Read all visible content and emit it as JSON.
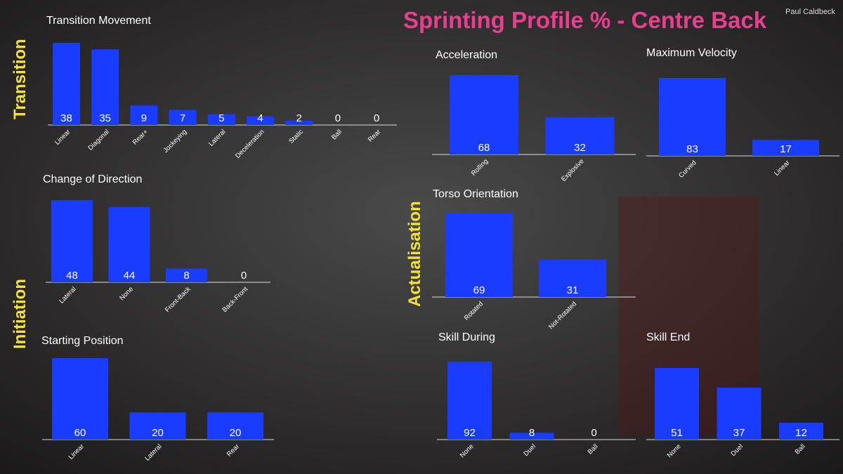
{
  "header": {
    "title": "Sprinting Profile % - Centre Back",
    "author": "Paul Caldbeck"
  },
  "sections": [
    "Transition",
    "Initiation",
    "Actualisation"
  ],
  "chart_data": [
    {
      "type": "bar",
      "title": "Transition Movement",
      "color": "#1a3cff",
      "categories": [
        "Linear",
        "Diagonal",
        "Rear+",
        "Jockeying",
        "Lateral",
        "Deceleration",
        "Static",
        "Ball",
        "Rear"
      ],
      "values": [
        38,
        35,
        9,
        7,
        5,
        4,
        2,
        0,
        0
      ]
    },
    {
      "type": "bar",
      "title": "Change of Direction",
      "color": "#1a3cff",
      "categories": [
        "Lateral",
        "None",
        "Front-Back",
        "Back-Front"
      ],
      "values": [
        48,
        44,
        8,
        0
      ]
    },
    {
      "type": "bar",
      "title": "Starting Position",
      "color": "#1a3cff",
      "categories": [
        "Linear",
        "Lateral",
        "Rear"
      ],
      "values": [
        60,
        20,
        20
      ]
    },
    {
      "type": "bar",
      "title": "Acceleration",
      "color": "#1a3cff",
      "categories": [
        "Rolling",
        "Explosive"
      ],
      "values": [
        68,
        32
      ]
    },
    {
      "type": "bar",
      "title": "Maximum Velocity",
      "color": "#1a3cff",
      "categories": [
        "Curved",
        "Linear"
      ],
      "values": [
        83,
        17
      ]
    },
    {
      "type": "bar",
      "title": "Torso Orientation",
      "color": "#1a3cff",
      "categories": [
        "Rotated",
        "Not-Rotated"
      ],
      "values": [
        69,
        31
      ]
    },
    {
      "type": "bar",
      "title": "Skill During",
      "color": "#1a3cff",
      "categories": [
        "None",
        "Duel",
        "Ball"
      ],
      "values": [
        92,
        8,
        0
      ]
    },
    {
      "type": "bar",
      "title": "Skill End",
      "color": "#1a3cff",
      "categories": [
        "None",
        "Duel",
        "Ball"
      ],
      "values": [
        51,
        37,
        12
      ]
    }
  ]
}
